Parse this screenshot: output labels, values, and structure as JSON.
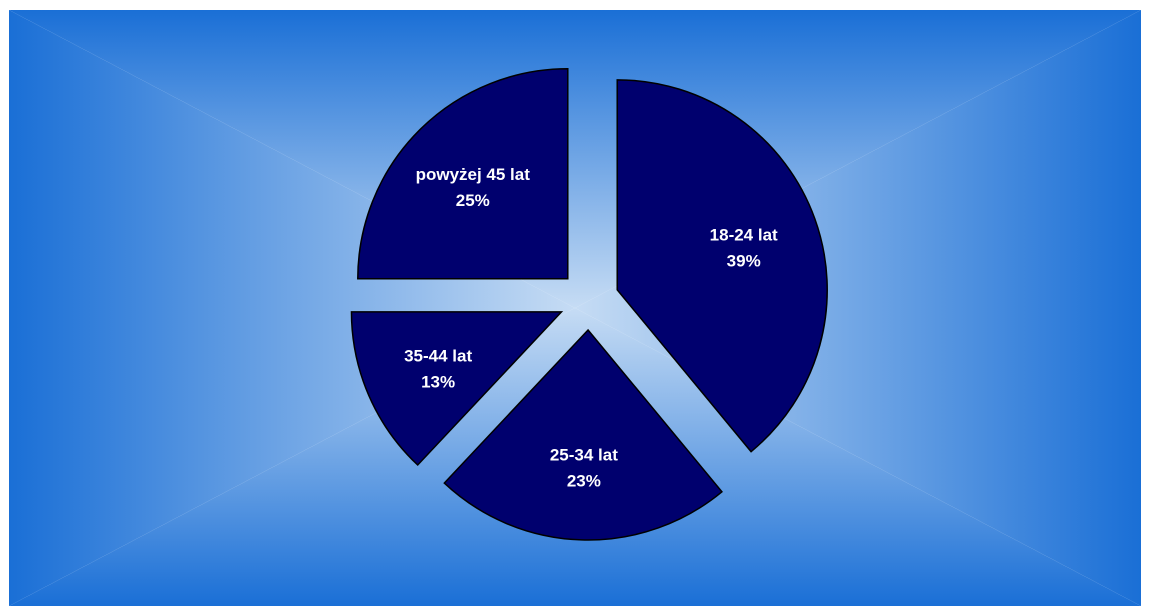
{
  "chart_data": {
    "type": "pie",
    "title": "",
    "background_colors": {
      "center": "#c6dcf4",
      "edge": "#1a6fd6"
    },
    "slice_color": "#00006e",
    "slice_stroke": "#000000",
    "slices": [
      {
        "label": "18-24 lat",
        "value": 39,
        "percent_label": "39%"
      },
      {
        "label": "25-34 lat",
        "value": 23,
        "percent_label": "23%"
      },
      {
        "label": "35-44 lat",
        "value": 13,
        "percent_label": "13%"
      },
      {
        "label": "powyżej 45 lat",
        "value": 25,
        "percent_label": "25%"
      }
    ],
    "legend": "none"
  }
}
